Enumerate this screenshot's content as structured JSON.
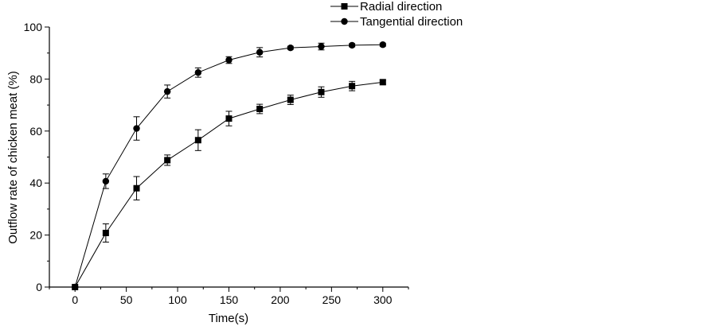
{
  "chart_data": {
    "type": "line",
    "title": "",
    "xlabel": "Time(s)",
    "ylabel": "Outflow rate of chicken meat (%)",
    "xlim": [
      -25,
      325
    ],
    "ylim": [
      0,
      100
    ],
    "x_ticks": [
      0,
      50,
      100,
      150,
      200,
      250,
      300
    ],
    "y_ticks": [
      0,
      20,
      40,
      60,
      80,
      100
    ],
    "legend_position": "top-right",
    "grid": false,
    "x": [
      0,
      30,
      60,
      90,
      120,
      150,
      180,
      210,
      240,
      270,
      300
    ],
    "series": [
      {
        "name": "Radial direction",
        "marker": "square",
        "values": [
          0,
          20.8,
          38.0,
          48.8,
          56.5,
          64.8,
          68.5,
          72.0,
          75.0,
          77.3,
          78.8
        ],
        "errors": [
          0,
          3.5,
          4.5,
          2.0,
          4.0,
          2.8,
          1.8,
          1.8,
          2.0,
          1.8,
          0.8
        ]
      },
      {
        "name": "Tangential direction",
        "marker": "circle",
        "values": [
          0,
          40.7,
          61.0,
          75.2,
          82.5,
          87.3,
          90.3,
          92.0,
          92.5,
          93.0,
          93.2
        ],
        "errors": [
          0,
          2.8,
          4.5,
          2.5,
          1.8,
          1.3,
          1.8,
          0.6,
          1.3,
          0.6,
          0.6
        ]
      }
    ]
  }
}
